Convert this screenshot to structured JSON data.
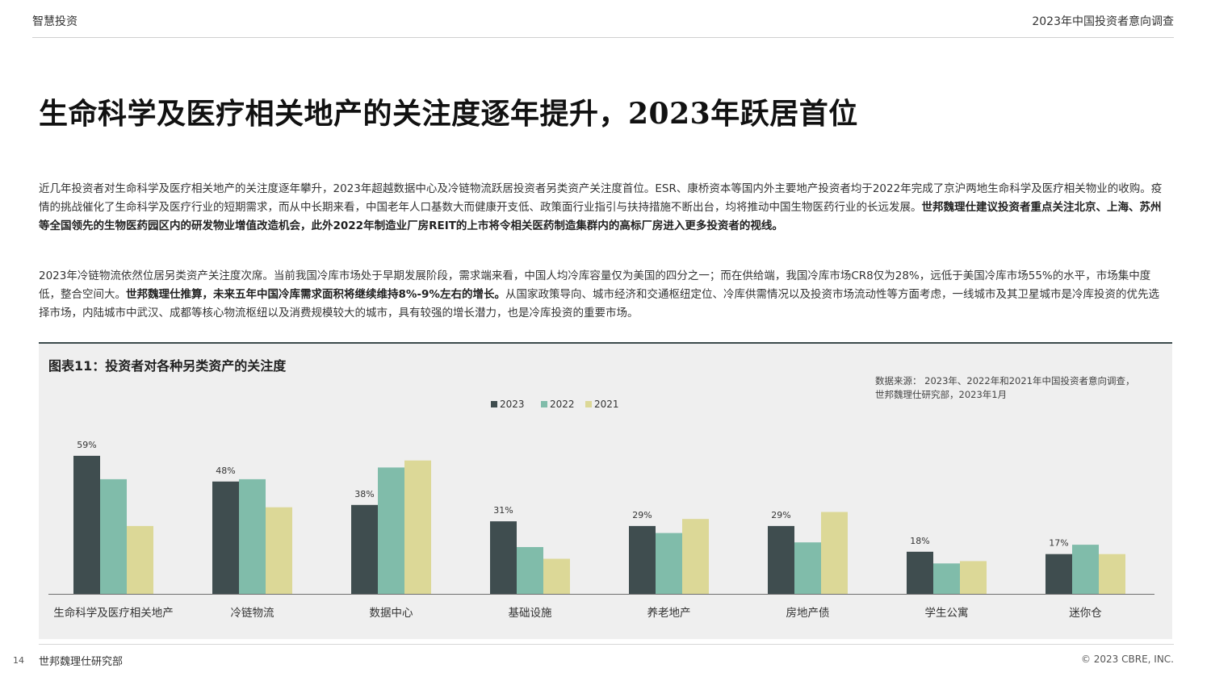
{
  "header": {
    "left": "智慧投资",
    "right": "2023年中国投资者意向调查"
  },
  "title": "生命科学及医疗相关地产的关注度逐年提升，2023年跃居首位",
  "paragraphs": {
    "p1_a": "近几年投资者对生命科学及医疗相关地产的关注度逐年攀升，2023年超越数据中心及冷链物流跃居投资者另类资产关注度首位。ESR、康桥资本等国内外主要地产投资者均于2022年完成了京沪两地生命科学及医疗相关物业的收购。疫情的挑战催化了生命科学及医疗行业的短期需求，而从中长期来看，中国老年人口基数大而健康开支低、政策面行业指引与扶持措施不断出台，均将推动中国生物医药行业的长远发展。",
    "p1_b": "世邦魏理仕建议投资者重点关注北京、上海、苏州等全国领先的生物医药园区内的研发物业增值改造机会，此外2022年制造业厂房REIT的上市将令相关医药制造集群内的高标厂房进入更多投资者的视线。",
    "p2_a": "2023年冷链物流依然位居另类资产关注度次席。当前我国冷库市场处于早期发展阶段，需求端来看，中国人均冷库容量仅为美国的四分之一；而在供给端，我国冷库市场CR8仅为28%，远低于美国冷库市场55%的水平，市场集中度低，整合空间大。",
    "p2_b": "世邦魏理仕推算，未来五年中国冷库需求面积将继续维持8%-9%左右的增长。",
    "p2_c": "从国家政策导向、城市经济和交通枢纽定位、冷库供需情况以及投资市场流动性等方面考虑，一线城市及其卫星城市是冷库投资的优先选择市场，内陆城市中武汉、成都等核心物流枢纽以及消费规模较大的城市，具有较强的增长潜力，也是冷库投资的重要市场。"
  },
  "chart_panel": {
    "title": "图表11：投资者对各种另类资产的关注度",
    "source_line1": "数据来源： 2023年、2022年和2021年中国投资者意向调查，",
    "source_line2": "世邦魏理仕研究部，2023年1月"
  },
  "chart_data": {
    "type": "bar",
    "categories": [
      "生命科学及医疗相关地产",
      "冷链物流",
      "数据中心",
      "基础设施",
      "养老地产",
      "房地产债",
      "学生公寓",
      "迷你仓"
    ],
    "series": [
      {
        "name": "2023",
        "color": "#3f4d4f",
        "values": [
          59,
          48,
          38,
          31,
          29,
          29,
          18,
          17
        ]
      },
      {
        "name": "2022",
        "color": "#80bcaa",
        "values": [
          49,
          49,
          54,
          20,
          26,
          22,
          13,
          21
        ]
      },
      {
        "name": "2021",
        "color": "#dcd897",
        "values": [
          29,
          37,
          57,
          15,
          32,
          35,
          14,
          17
        ]
      }
    ],
    "data_labels": [
      "59%",
      "48%",
      "38%",
      "31%",
      "29%",
      "29%",
      "18%",
      "17%"
    ],
    "legend_position": "top-center",
    "grid": false,
    "ylim": [
      0,
      60
    ]
  },
  "footer": {
    "page": "14",
    "left": "世邦魏理仕研究部",
    "right": "© 2023 CBRE, INC."
  }
}
